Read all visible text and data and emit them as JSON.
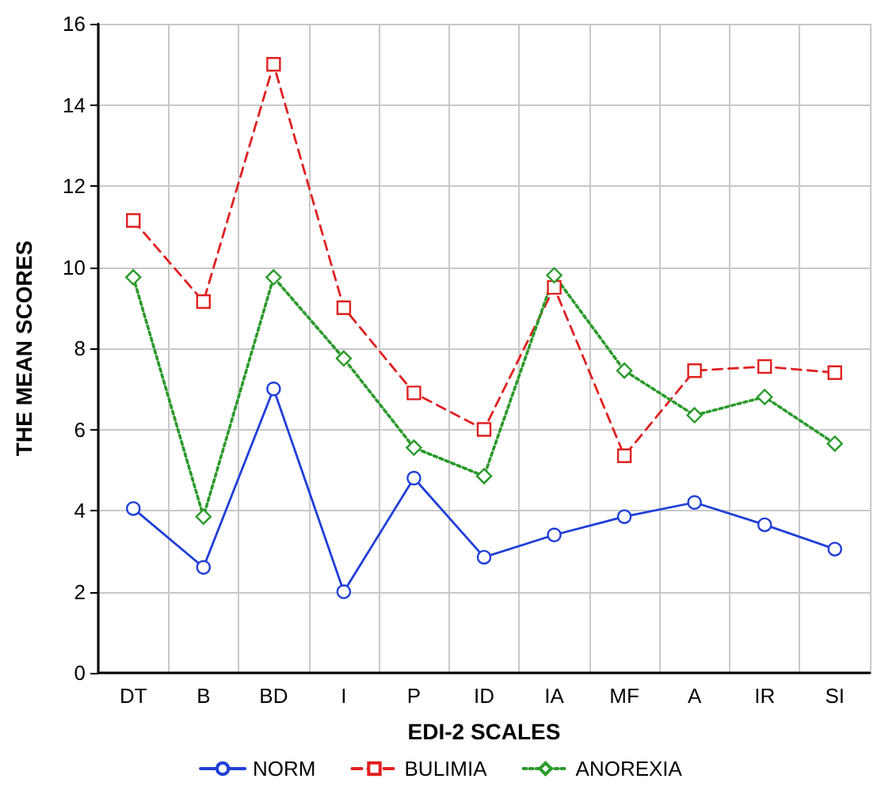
{
  "chart_data": {
    "type": "line",
    "xlabel": "EDI-2 SCALES",
    "ylabel": "THE MEAN SCORES",
    "categories": [
      "DT",
      "B",
      "BD",
      "I",
      "P",
      "ID",
      "IA",
      "MF",
      "A",
      "IR",
      "SI"
    ],
    "series": [
      {
        "name": "NORM",
        "color": "#1f3fd8",
        "marker": "circle",
        "line_style": "solid",
        "values": [
          4.05,
          2.6,
          7.0,
          2.0,
          4.8,
          2.85,
          3.4,
          3.85,
          4.2,
          3.65,
          3.05
        ]
      },
      {
        "name": "BULIMIA",
        "color": "#e02020",
        "marker": "square",
        "line_style": "dashed",
        "values": [
          11.15,
          9.15,
          15.0,
          9.0,
          6.9,
          6.0,
          9.5,
          5.35,
          7.45,
          7.55,
          7.4
        ]
      },
      {
        "name": "ANOREXIA",
        "color": "#2a9a2a",
        "marker": "diamond",
        "line_style": "dotted",
        "values": [
          9.75,
          3.85,
          9.75,
          7.75,
          5.55,
          4.85,
          9.8,
          7.45,
          6.35,
          6.8,
          5.65
        ]
      }
    ],
    "ylim": [
      0,
      16
    ],
    "yticks": [
      0,
      2,
      4,
      6,
      8,
      10,
      12,
      14,
      16
    ],
    "grid": true,
    "legend": "bottom"
  }
}
